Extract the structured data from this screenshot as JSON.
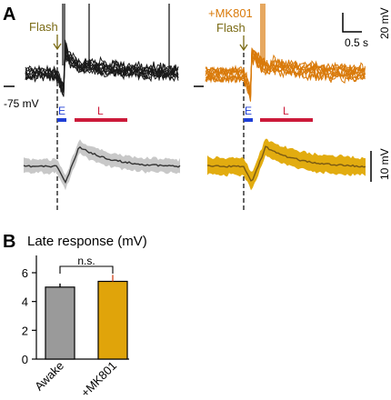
{
  "colors": {
    "awake_trace": "#1a1a1a",
    "mk801_trace": "#d97a0a",
    "flash_text": "#7a6a14",
    "early_window": "#1f3fd6",
    "late_window": "#cc1a3a",
    "awake_sd_band": "#c8c8c8",
    "awake_mean_line": "#333333",
    "mk801_sd_band": "#e2ac10",
    "mk801_mean_line": "#7a5a14",
    "bar_awake": "#9a9a9a",
    "bar_mk801": "#e0a40a",
    "errorbar_mk801": "#d4502a"
  },
  "panel_a": {
    "panel_label": "A",
    "flash_label": "Flash",
    "mk801_label": "+MK801",
    "vm_label": "-75 mV",
    "early_label": "E",
    "late_label": "L",
    "scale_top_v": "20 mV",
    "scale_top_t": "0.5 s",
    "scale_bottom_v": "10 mV"
  },
  "panel_b": {
    "panel_label": "B",
    "ns_label": "n.s."
  },
  "chart_data": {
    "type": "bar",
    "title": "Late response (mV)",
    "categories": [
      "Awake",
      "+MK801"
    ],
    "values": [
      5.0,
      5.4
    ],
    "errors": [
      0.25,
      0.45
    ],
    "ylim": [
      0,
      7.2
    ],
    "yticks": [
      0,
      2,
      4,
      6
    ],
    "xlabel": "",
    "ylabel": "",
    "grid": false,
    "significance": "n.s."
  }
}
